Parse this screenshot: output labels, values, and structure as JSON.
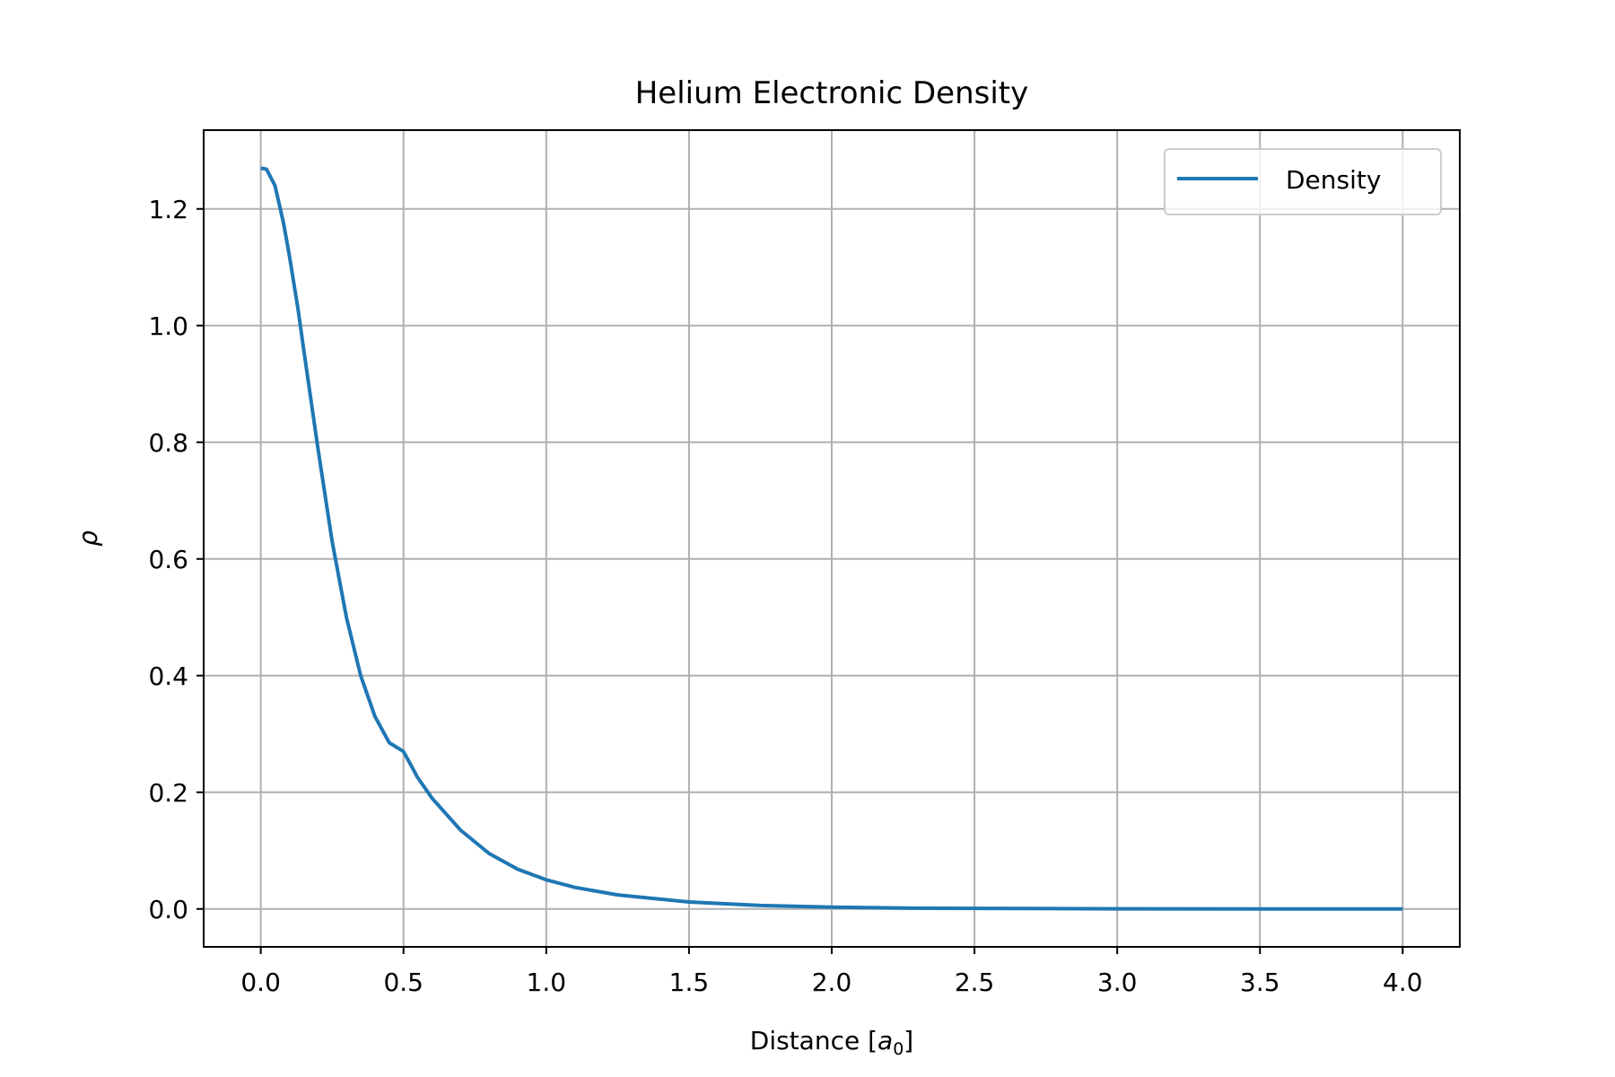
{
  "chart_data": {
    "type": "line",
    "title": "Helium Electronic Density",
    "xlabel": "Distance [a0]",
    "xlabel_parts": {
      "prefix": "Distance [",
      "var": "a",
      "sub": "0",
      "suffix": "]"
    },
    "ylabel": "ρ",
    "xlim": [
      -0.2,
      4.2
    ],
    "ylim": [
      -0.065,
      1.335
    ],
    "xticks": [
      0.0,
      0.5,
      1.0,
      1.5,
      2.0,
      2.5,
      3.0,
      3.5,
      4.0
    ],
    "xtick_labels": [
      "0.0",
      "0.5",
      "1.0",
      "1.5",
      "2.0",
      "2.5",
      "3.0",
      "3.5",
      "4.0"
    ],
    "yticks": [
      0.0,
      0.2,
      0.4,
      0.6,
      0.8,
      1.0,
      1.2
    ],
    "ytick_labels": [
      "0.0",
      "0.2",
      "0.4",
      "0.6",
      "0.8",
      "1.0",
      "1.2"
    ],
    "grid": true,
    "legend_position": "top-right",
    "series": [
      {
        "name": "Density",
        "color": "#1f77b4",
        "x": [
          0.0,
          0.02,
          0.05,
          0.08,
          0.1,
          0.13,
          0.15,
          0.2,
          0.25,
          0.3,
          0.35,
          0.4,
          0.45,
          0.5,
          0.55,
          0.6,
          0.7,
          0.8,
          0.9,
          1.0,
          1.1,
          1.25,
          1.5,
          1.75,
          2.0,
          2.25,
          2.5,
          3.0,
          3.5,
          4.0
        ],
        "y": [
          1.27,
          1.268,
          1.24,
          1.175,
          1.12,
          1.03,
          0.96,
          0.79,
          0.63,
          0.5,
          0.4,
          0.33,
          0.285,
          0.27,
          0.225,
          0.19,
          0.135,
          0.095,
          0.068,
          0.05,
          0.037,
          0.024,
          0.012,
          0.006,
          0.003,
          0.0015,
          0.001,
          0.0003,
          0.0001,
          0.0
        ]
      }
    ]
  }
}
